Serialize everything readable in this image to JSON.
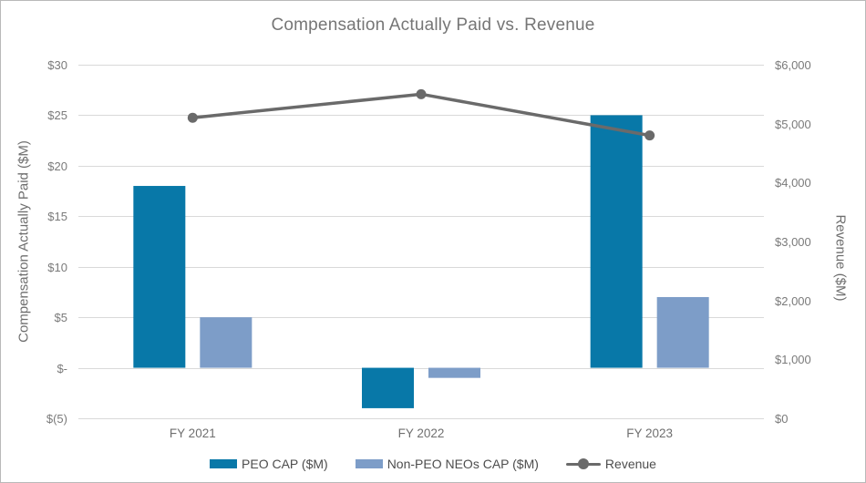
{
  "title": "Compensation Actually Paid vs. Revenue",
  "colors": {
    "peo_bar": "#0878a8",
    "non_peo_bar": "#7d9dc8",
    "revenue_line": "#6a6a6a",
    "gridline": "#d9d9d9",
    "tick_text": "#7a7a7a",
    "title_text": "#767676",
    "legend_text": "#4d4d4d"
  },
  "chart_data": {
    "type": "bar+line combo",
    "title": "Compensation Actually Paid vs. Revenue",
    "categories": [
      "FY 2021",
      "FY 2022",
      "FY 2023"
    ],
    "series": [
      {
        "name": "PEO CAP ($M)",
        "type": "bar",
        "axis": "left",
        "color": "#0878a8",
        "values": [
          18,
          -4,
          25
        ]
      },
      {
        "name": "Non-PEO NEOs CAP ($M)",
        "type": "bar",
        "axis": "left",
        "color": "#7d9dc8",
        "values": [
          5,
          -1,
          7
        ]
      },
      {
        "name": "Revenue",
        "type": "line",
        "axis": "right",
        "color": "#6a6a6a",
        "values": [
          5100,
          5500,
          4800
        ]
      }
    ],
    "left_axis": {
      "title": "Compensation Actually Paid ($M)",
      "min": -5,
      "max": 30,
      "step": 5,
      "tick_labels_top_to_bottom": [
        "$30",
        "$25",
        "$20",
        "$15",
        "$10",
        "$5",
        "$-",
        "$(5)"
      ]
    },
    "right_axis": {
      "title": "Revenue ($M)",
      "min": 0,
      "max": 6000,
      "step": 1000,
      "tick_labels_top_to_bottom": [
        "$6,000",
        "$5,000",
        "$4,000",
        "$3,000",
        "$2,000",
        "$1,000",
        "$0"
      ]
    },
    "grid": "horizontal-on",
    "legend_position": "bottom-center"
  }
}
